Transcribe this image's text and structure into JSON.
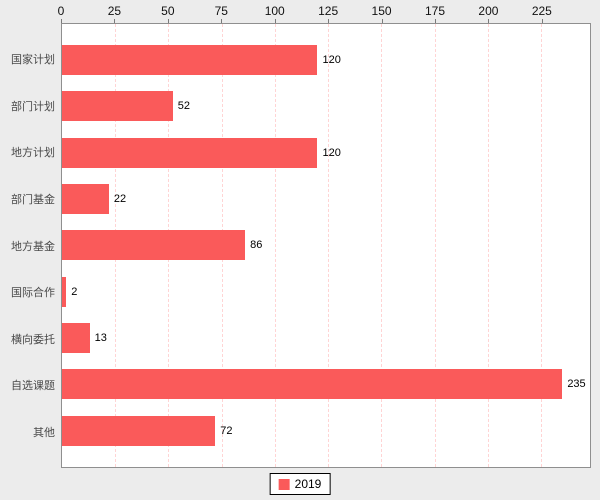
{
  "chart_data": {
    "type": "bar",
    "orientation": "horizontal",
    "title": "",
    "xlabel": "",
    "ylabel": "",
    "categories": [
      "国家计划",
      "部门计划",
      "地方计划",
      "部门基金",
      "地方基金",
      "国际合作",
      "横向委托",
      "自选课题",
      "其他"
    ],
    "series": [
      {
        "name": "2019",
        "values": [
          120,
          52,
          120,
          22,
          86,
          2,
          13,
          235,
          72
        ]
      }
    ],
    "value_labels": [
      120,
      52,
      120,
      22,
      86,
      2,
      13,
      235,
      72
    ],
    "x_ticks": [
      0,
      25,
      50,
      75,
      100,
      125,
      150,
      175,
      200,
      225
    ],
    "xlim": [
      0,
      248
    ],
    "grid": "vertical-dashed",
    "legend_position": "bottom-center"
  },
  "legend": {
    "label": "2019"
  },
  "colors": {
    "bar": "#fa5a5a",
    "gridline": "#ffd4d4",
    "plot_background": "#ffffff",
    "page_background": "#ececec",
    "plot_border": "#8f8f8f",
    "legend_swatch": "#fa5a5a"
  }
}
